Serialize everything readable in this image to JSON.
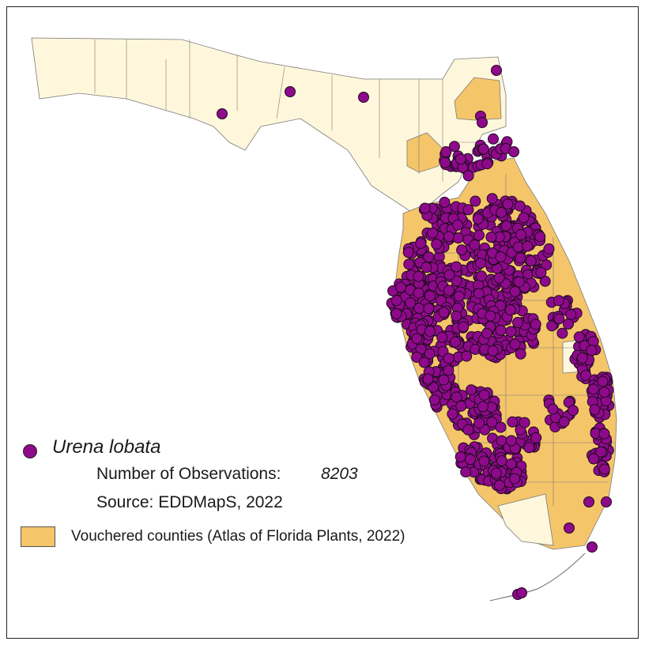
{
  "colors": {
    "observation_fill": "#8e0a8a",
    "observation_stroke": "#1e0a1e",
    "vouchered_fill": "#f5c56a",
    "non_vouchered_fill": "#fff7dc",
    "county_border": "#7a7a7a",
    "frame": "#222222"
  },
  "legend": {
    "species": "Urena lobata",
    "observations_label": "Number of Observations:",
    "observations_value": "8203",
    "source": "Source: EDDMapS, 2022",
    "vouchered_label": "Vouchered counties (Atlas of Florida Plants, 2022)"
  },
  "map": {
    "region": "Florida",
    "observation_symbol": "circle",
    "vouchered_region": "central and south peninsula plus two northeast counties"
  }
}
